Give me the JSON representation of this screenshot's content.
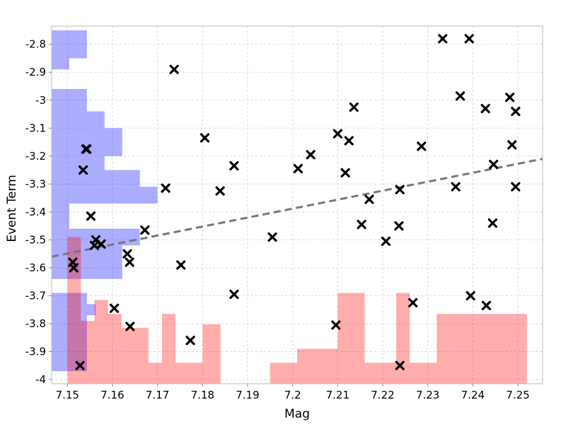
{
  "chart_data": {
    "type": "scatter",
    "title": "",
    "xlabel": "Mag",
    "ylabel": "Event Term",
    "xlim": [
      7.1465,
      7.2555
    ],
    "ylim": [
      -4.015,
      -2.735
    ],
    "grid": true,
    "x_ticks": [
      "7.15",
      "7.16",
      "7.17",
      "7.18",
      "7.19",
      "7.2",
      "7.21",
      "7.22",
      "7.23",
      "7.24",
      "7.25"
    ],
    "y_ticks": [
      "-2.8",
      "-2.9",
      "-3",
      "-3.1",
      "-3.2",
      "-3.3",
      "-3.4",
      "-3.5",
      "-3.6",
      "-3.7",
      "-3.8",
      "-3.9",
      "-4"
    ],
    "points": {
      "marker": "x",
      "color": "#000000",
      "x": [
        7.1528,
        7.1535,
        7.1541,
        7.1543,
        7.1552,
        7.1563,
        7.1512,
        7.1514,
        7.156,
        7.1575,
        7.1604,
        7.1638,
        7.1633,
        7.1639,
        7.1672,
        7.1718,
        7.1737,
        7.1752,
        7.1773,
        7.1805,
        7.1839,
        7.187,
        7.187,
        7.1955,
        7.2012,
        7.204,
        7.2096,
        7.21,
        7.2117,
        7.2125,
        7.2136,
        7.2153,
        7.217,
        7.2207,
        7.2236,
        7.2238,
        7.2238,
        7.2267,
        7.2286,
        7.2333,
        7.2362,
        7.2372,
        7.2392,
        7.2395,
        7.2428,
        7.243,
        7.2444,
        7.2446,
        7.2482,
        7.2487,
        7.2495,
        7.2495
      ],
      "y": [
        -3.95,
        -3.25,
        -3.175,
        -3.175,
        -3.415,
        -3.5,
        -3.58,
        -3.6,
        -3.52,
        -3.515,
        -3.745,
        -3.58,
        -3.55,
        -3.81,
        -3.465,
        -3.315,
        -2.89,
        -3.59,
        -3.86,
        -3.135,
        -3.325,
        -3.235,
        -3.695,
        -3.49,
        -3.245,
        -3.195,
        -3.805,
        -3.12,
        -3.26,
        -3.145,
        -3.025,
        -3.445,
        -3.355,
        -3.505,
        -3.45,
        -3.32,
        -3.95,
        -3.725,
        -3.165,
        -2.78,
        -3.31,
        -2.985,
        -2.78,
        -3.7,
        -3.03,
        -3.735,
        -3.44,
        -3.23,
        -2.99,
        -3.16,
        -3.04,
        -3.31
      ]
    },
    "trend_line": {
      "style": "dashed",
      "color": "#777777",
      "x": [
        7.1465,
        7.2555
      ],
      "y": [
        -3.56,
        -3.21
      ]
    },
    "y_histogram": {
      "color": "#0000ff",
      "opacity": 0.32,
      "anchor": "left",
      "bins": [
        {
          "y0": -2.85,
          "y1": -2.75,
          "count": 4
        },
        {
          "y0": -2.89,
          "y1": -2.85,
          "count": 2
        },
        {
          "y0": -3.04,
          "y1": -2.96,
          "count": 4
        },
        {
          "y0": -3.1,
          "y1": -3.04,
          "count": 6
        },
        {
          "y0": -3.2,
          "y1": -3.1,
          "count": 8
        },
        {
          "y0": -3.25,
          "y1": -3.2,
          "count": 6
        },
        {
          "y0": -3.31,
          "y1": -3.25,
          "count": 10
        },
        {
          "y0": -3.37,
          "y1": -3.31,
          "count": 12
        },
        {
          "y0": -3.46,
          "y1": -3.37,
          "count": 2
        },
        {
          "y0": -3.52,
          "y1": -3.46,
          "count": 10
        },
        {
          "y0": -3.64,
          "y1": -3.52,
          "count": 8
        },
        {
          "y0": -3.69,
          "y1": -3.64,
          "count": 0
        },
        {
          "y0": -3.73,
          "y1": -3.69,
          "count": 4
        },
        {
          "y0": -3.77,
          "y1": -3.73,
          "count": 5
        },
        {
          "y0": -3.97,
          "y1": -3.77,
          "count": 4
        }
      ]
    },
    "x_histogram": {
      "color": "#ff0000",
      "opacity": 0.32,
      "anchor": "bottom",
      "bins": [
        {
          "x0": 7.15,
          "x1": 7.153,
          "count": 2.1
        },
        {
          "x0": 7.153,
          "x1": 7.156,
          "count": 0.9
        },
        {
          "x0": 7.156,
          "x1": 7.159,
          "count": 1.2
        },
        {
          "x0": 7.159,
          "x1": 7.162,
          "count": 1.0
        },
        {
          "x0": 7.162,
          "x1": 7.165,
          "count": 0.8
        },
        {
          "x0": 7.165,
          "x1": 7.168,
          "count": 0.8
        },
        {
          "x0": 7.168,
          "x1": 7.171,
          "count": 0.3
        },
        {
          "x0": 7.171,
          "x1": 7.174,
          "count": 1.0
        },
        {
          "x0": 7.174,
          "x1": 7.177,
          "count": 0.3
        },
        {
          "x0": 7.177,
          "x1": 7.18,
          "count": 0.3
        },
        {
          "x0": 7.18,
          "x1": 7.184,
          "count": 0.85
        },
        {
          "x0": 7.195,
          "x1": 7.198,
          "count": 0.3
        },
        {
          "x0": 7.198,
          "x1": 7.201,
          "count": 0.3
        },
        {
          "x0": 7.201,
          "x1": 7.204,
          "count": 0.5
        },
        {
          "x0": 7.204,
          "x1": 7.207,
          "count": 0.5
        },
        {
          "x0": 7.207,
          "x1": 7.21,
          "count": 0.5
        },
        {
          "x0": 7.21,
          "x1": 7.213,
          "count": 1.3
        },
        {
          "x0": 7.213,
          "x1": 7.216,
          "count": 1.3
        },
        {
          "x0": 7.216,
          "x1": 7.219,
          "count": 0.3
        },
        {
          "x0": 7.219,
          "x1": 7.223,
          "count": 0.3
        },
        {
          "x0": 7.223,
          "x1": 7.226,
          "count": 1.3
        },
        {
          "x0": 7.226,
          "x1": 7.229,
          "count": 0.3
        },
        {
          "x0": 7.229,
          "x1": 7.232,
          "count": 0.3
        },
        {
          "x0": 7.232,
          "x1": 7.236,
          "count": 1.0
        },
        {
          "x0": 7.236,
          "x1": 7.24,
          "count": 1.0
        },
        {
          "x0": 7.24,
          "x1": 7.244,
          "count": 1.0
        },
        {
          "x0": 7.244,
          "x1": 7.248,
          "count": 1.0
        },
        {
          "x0": 7.248,
          "x1": 7.252,
          "count": 1.0
        }
      ]
    }
  }
}
